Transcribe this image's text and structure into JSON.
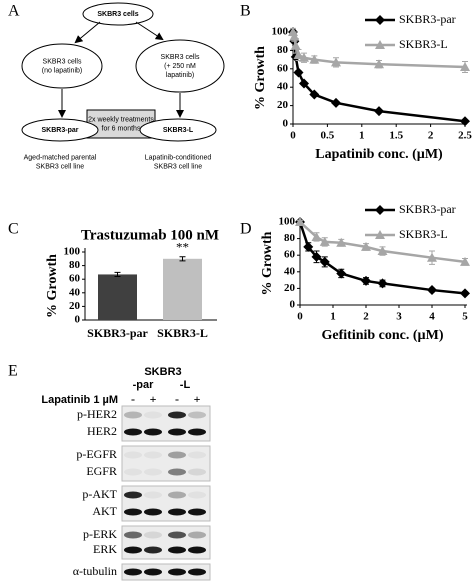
{
  "panels": [
    "A",
    "B",
    "C",
    "D",
    "E"
  ],
  "diagram": {
    "nodes": [
      {
        "lines": [
          "SKBR3 cells"
        ]
      },
      {
        "lines": [
          "SKBR3 cells",
          "(no lapatinib)"
        ]
      },
      {
        "lines": [
          "SKBR3 cells",
          "(+ 250 nM",
          "lapatinib)"
        ]
      },
      {
        "lines": [
          "2x weekly treatments",
          "for 6 months"
        ]
      },
      {
        "lines": [
          "SKBR3-par"
        ]
      },
      {
        "lines": [
          "SKBR3-L"
        ]
      },
      {
        "lines": [
          "Aged-matched parental",
          "SKBR3 cell line"
        ]
      },
      {
        "lines": [
          "Lapatinib-conditioned",
          "SKBR3 cell line"
        ]
      }
    ]
  },
  "chart_data": [
    {
      "type": "line",
      "xlabel": "Lapatinib conc. (µM)",
      "ylabel": "% Growth",
      "xlim": [
        0,
        2.5
      ],
      "ylim": [
        0,
        100
      ],
      "xticks": [
        0,
        0.5,
        1,
        1.5,
        2,
        2.5
      ],
      "yticks": [
        0,
        20,
        40,
        60,
        80,
        100
      ],
      "legend": "upper right",
      "series": [
        {
          "name": "SKBR3-par",
          "color": "#000000",
          "marker": "diamond",
          "x": [
            0,
            0.02,
            0.04,
            0.08,
            0.16,
            0.31,
            0.625,
            1.25,
            2.5
          ],
          "values": [
            100,
            90,
            73,
            56,
            44,
            32,
            23,
            14,
            3
          ],
          "errors": [
            2,
            2,
            2,
            2,
            1,
            1,
            1,
            1,
            1
          ]
        },
        {
          "name": "SKBR3-L",
          "color": "#a6a6a6",
          "marker": "triangle",
          "x": [
            0,
            0.02,
            0.04,
            0.08,
            0.16,
            0.31,
            0.625,
            1.25,
            2.5
          ],
          "values": [
            100,
            95,
            85,
            75,
            72,
            70,
            67,
            65,
            62
          ],
          "errors": [
            4,
            5,
            8,
            6,
            5,
            4,
            5,
            4,
            6
          ]
        }
      ]
    },
    {
      "type": "bar",
      "title": "Trastuzumab 100 nM",
      "ylabel": "% Growth",
      "categories": [
        "SKBR3-par",
        "SKBR3-L"
      ],
      "values": [
        67,
        90
      ],
      "errors": [
        3,
        3
      ],
      "colors": [
        "#404040",
        "#bfbfbf"
      ],
      "ylim": [
        0,
        100
      ],
      "yticks": [
        0,
        20,
        40,
        60,
        80,
        100
      ],
      "annotations": [
        {
          "category": "SKBR3-L",
          "text": "**"
        }
      ]
    },
    {
      "type": "line",
      "xlabel": "Gefitinib conc. (µM)",
      "ylabel": "% Growth",
      "xlim": [
        0,
        5
      ],
      "ylim": [
        0,
        100
      ],
      "xticks": [
        0,
        1,
        2,
        3,
        4,
        5
      ],
      "yticks": [
        0,
        20,
        40,
        60,
        80,
        100
      ],
      "legend": "upper right",
      "series": [
        {
          "name": "SKBR3-par",
          "color": "#000000",
          "marker": "diamond",
          "x": [
            0,
            0.25,
            0.5,
            0.75,
            1.25,
            2,
            2.5,
            4,
            5
          ],
          "values": [
            100,
            70,
            58,
            52,
            38,
            29,
            26,
            18,
            14
          ],
          "errors": [
            2,
            5,
            7,
            6,
            5,
            4,
            4,
            2,
            2
          ]
        },
        {
          "name": "SKBR3-L",
          "color": "#a6a6a6",
          "marker": "triangle",
          "x": [
            0,
            0.5,
            0.75,
            1.25,
            2,
            2.5,
            4,
            5
          ],
          "values": [
            100,
            82,
            76,
            75,
            70,
            65,
            57,
            52
          ],
          "errors": [
            2,
            5,
            5,
            4,
            4,
            5,
            8,
            4
          ]
        }
      ]
    }
  ],
  "blot": {
    "cell_line": "SKBR3",
    "groups": [
      "-par",
      "-L"
    ],
    "treatment": "Lapatinib 1 µM",
    "lanes": [
      "-",
      "+",
      "-",
      "+"
    ],
    "rows": [
      "p-HER2",
      "HER2",
      "p-EGFR",
      "EGFR",
      "p-AKT",
      "AKT",
      "p-ERK",
      "ERK",
      "α-tubulin"
    ]
  }
}
